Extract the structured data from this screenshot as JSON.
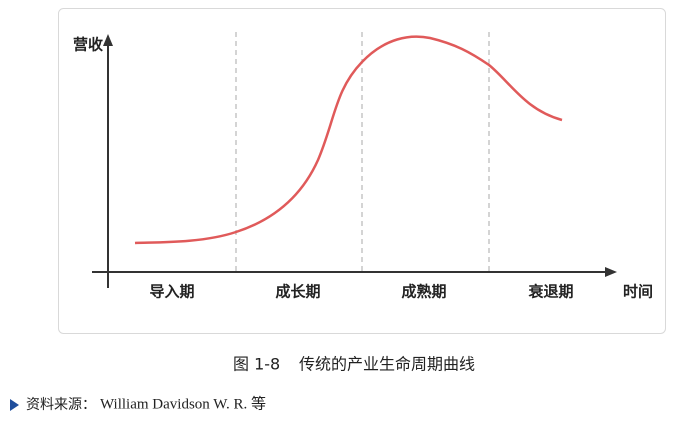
{
  "diagram": {
    "y_axis_label": "营收",
    "x_axis_label": "时间",
    "stages": [
      "导入期",
      "成长期",
      "成熟期",
      "衰退期"
    ]
  },
  "caption": {
    "number": "图 1-8",
    "title": "传统的产业生命周期曲线"
  },
  "source": {
    "label": "资料来源：",
    "text": "William Davidson W. R. 等"
  }
}
